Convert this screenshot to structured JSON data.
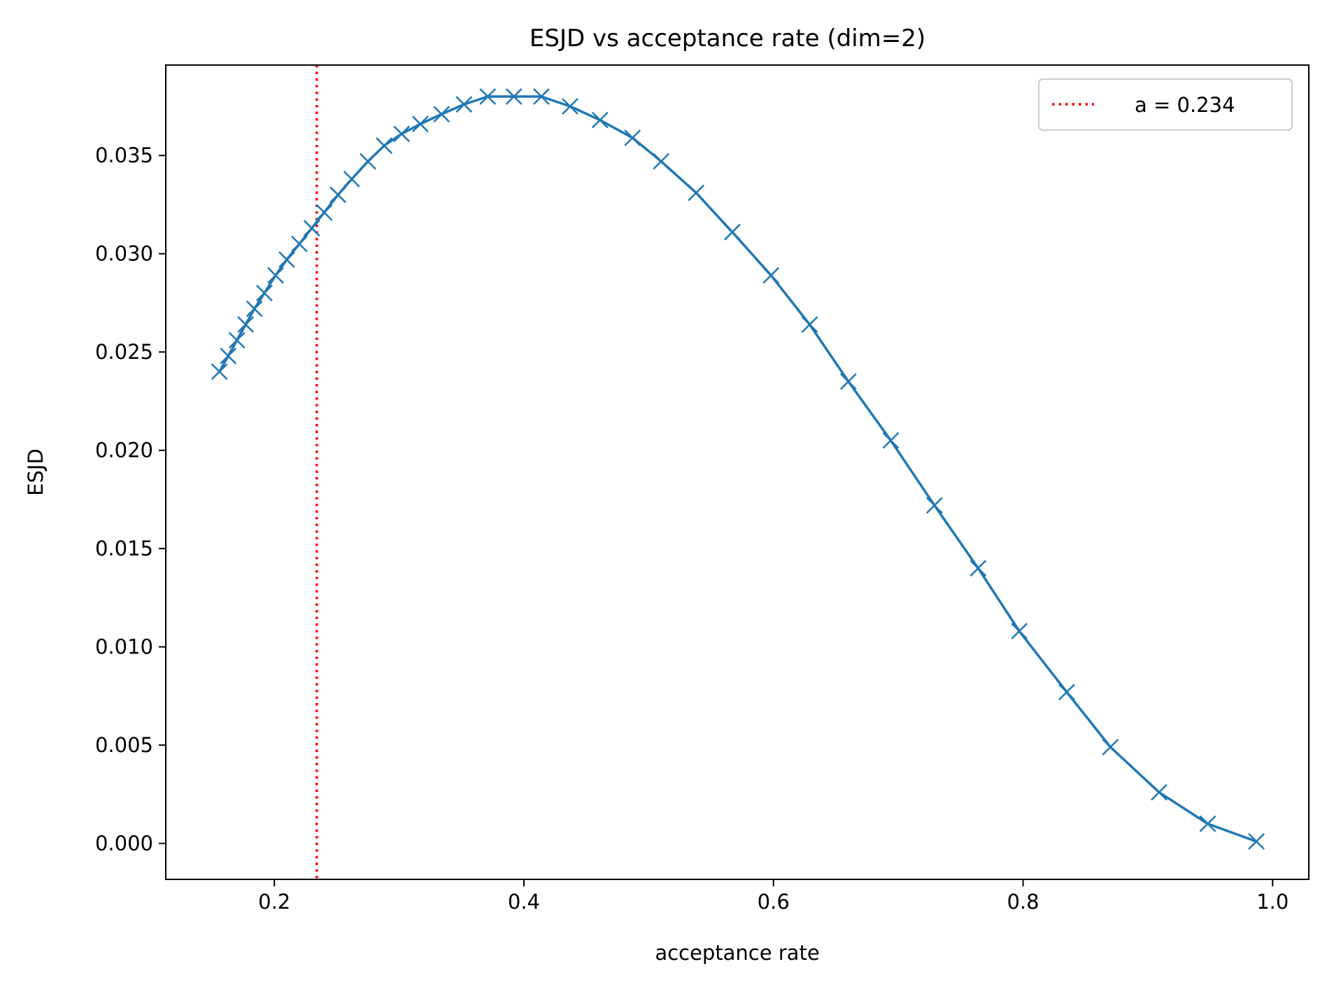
{
  "colors": {
    "series": "#1f77b4",
    "reference": "#ff0000",
    "axes": "#000000",
    "legend_border": "#cccccc",
    "background": "#ffffff"
  },
  "chart_data": {
    "type": "line",
    "title": "ESJD vs acceptance rate (dim=2)",
    "xlabel": "acceptance rate",
    "ylabel": "ESJD",
    "xlim": [
      0.113,
      1.029
    ],
    "ylim": [
      -0.00183,
      0.0396
    ],
    "xticks": [
      0.2,
      0.4,
      0.6,
      0.8,
      1.0
    ],
    "xtick_labels": [
      "0.2",
      "0.4",
      "0.6",
      "0.8",
      "1.0"
    ],
    "yticks": [
      0.0,
      0.005,
      0.01,
      0.015,
      0.02,
      0.025,
      0.03,
      0.035
    ],
    "ytick_labels": [
      "0.000",
      "0.005",
      "0.010",
      "0.015",
      "0.020",
      "0.025",
      "0.030",
      "0.035"
    ],
    "grid": false,
    "legend_position": "top-right",
    "series": [
      {
        "name": "ESJD",
        "marker": "x",
        "x": [
          0.156,
          0.163,
          0.17,
          0.177,
          0.184,
          0.192,
          0.201,
          0.21,
          0.22,
          0.23,
          0.24,
          0.251,
          0.262,
          0.275,
          0.288,
          0.302,
          0.317,
          0.334,
          0.352,
          0.371,
          0.392,
          0.414,
          0.437,
          0.461,
          0.487,
          0.51,
          0.538,
          0.567,
          0.598,
          0.629,
          0.66,
          0.694,
          0.729,
          0.764,
          0.797,
          0.835,
          0.87,
          0.909,
          0.948,
          0.987
        ],
        "y": [
          0.024,
          0.0248,
          0.0256,
          0.0264,
          0.0272,
          0.028,
          0.0289,
          0.0297,
          0.0305,
          0.0313,
          0.0321,
          0.033,
          0.0338,
          0.0347,
          0.0355,
          0.0361,
          0.0366,
          0.0371,
          0.0376,
          0.038,
          0.038,
          0.038,
          0.0375,
          0.0368,
          0.0359,
          0.0347,
          0.0331,
          0.0311,
          0.0289,
          0.0264,
          0.0235,
          0.0205,
          0.0172,
          0.014,
          0.0108,
          0.0077,
          0.0049,
          0.0026,
          0.001,
          0.0001
        ]
      }
    ],
    "reference_line": {
      "x": 0.234,
      "label": "a = 0.234",
      "style": "dotted"
    }
  }
}
